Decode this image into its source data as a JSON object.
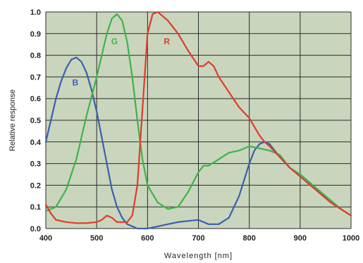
{
  "chart_data": {
    "type": "line",
    "title": "",
    "xlabel": "Wavelength [nm]",
    "ylabel": "Relative response",
    "xlim": [
      400,
      1000
    ],
    "ylim": [
      0,
      1
    ],
    "x_ticks": [
      400,
      500,
      600,
      700,
      800,
      900,
      1000
    ],
    "y_ticks": [
      0.0,
      0.1,
      0.2,
      0.3,
      0.4,
      0.5,
      0.6,
      0.7,
      0.8,
      0.9,
      1.0
    ],
    "grid": true,
    "plot_background": "#c9d6bd",
    "grid_color": "#2a2a2a",
    "series": [
      {
        "name": "B",
        "color": "#3a5fb0",
        "points": [
          [
            400,
            0.4
          ],
          [
            410,
            0.5
          ],
          [
            420,
            0.6
          ],
          [
            430,
            0.68
          ],
          [
            440,
            0.74
          ],
          [
            450,
            0.78
          ],
          [
            460,
            0.79
          ],
          [
            470,
            0.77
          ],
          [
            480,
            0.72
          ],
          [
            490,
            0.64
          ],
          [
            500,
            0.54
          ],
          [
            510,
            0.42
          ],
          [
            520,
            0.3
          ],
          [
            530,
            0.18
          ],
          [
            540,
            0.1
          ],
          [
            550,
            0.05
          ],
          [
            560,
            0.02
          ],
          [
            570,
            0.01
          ],
          [
            580,
            0.0
          ],
          [
            600,
            0.0
          ],
          [
            620,
            0.01
          ],
          [
            640,
            0.02
          ],
          [
            660,
            0.03
          ],
          [
            680,
            0.035
          ],
          [
            700,
            0.04
          ],
          [
            710,
            0.03
          ],
          [
            720,
            0.02
          ],
          [
            740,
            0.02
          ],
          [
            760,
            0.05
          ],
          [
            780,
            0.15
          ],
          [
            800,
            0.3
          ],
          [
            810,
            0.36
          ],
          [
            820,
            0.39
          ],
          [
            830,
            0.4
          ],
          [
            840,
            0.39
          ],
          [
            860,
            0.33
          ],
          [
            880,
            0.28
          ],
          [
            900,
            0.25
          ],
          [
            920,
            0.21
          ],
          [
            940,
            0.16
          ],
          [
            960,
            0.13
          ],
          [
            980,
            0.09
          ],
          [
            1000,
            0.06
          ]
        ]
      },
      {
        "name": "G",
        "color": "#3db34a",
        "points": [
          [
            400,
            0.08
          ],
          [
            420,
            0.1
          ],
          [
            440,
            0.18
          ],
          [
            460,
            0.32
          ],
          [
            480,
            0.52
          ],
          [
            500,
            0.7
          ],
          [
            510,
            0.8
          ],
          [
            520,
            0.9
          ],
          [
            530,
            0.97
          ],
          [
            540,
            0.99
          ],
          [
            550,
            0.96
          ],
          [
            560,
            0.86
          ],
          [
            570,
            0.7
          ],
          [
            580,
            0.5
          ],
          [
            590,
            0.32
          ],
          [
            600,
            0.2
          ],
          [
            620,
            0.12
          ],
          [
            640,
            0.09
          ],
          [
            660,
            0.1
          ],
          [
            680,
            0.17
          ],
          [
            700,
            0.26
          ],
          [
            710,
            0.29
          ],
          [
            720,
            0.29
          ],
          [
            740,
            0.32
          ],
          [
            760,
            0.35
          ],
          [
            780,
            0.36
          ],
          [
            800,
            0.38
          ],
          [
            820,
            0.37
          ],
          [
            840,
            0.36
          ],
          [
            860,
            0.34
          ],
          [
            880,
            0.28
          ],
          [
            900,
            0.25
          ],
          [
            920,
            0.21
          ],
          [
            940,
            0.17
          ],
          [
            960,
            0.13
          ],
          [
            980,
            0.09
          ],
          [
            1000,
            0.06
          ]
        ]
      },
      {
        "name": "R",
        "color": "#e23a2b",
        "points": [
          [
            400,
            0.11
          ],
          [
            410,
            0.07
          ],
          [
            420,
            0.04
          ],
          [
            440,
            0.03
          ],
          [
            460,
            0.025
          ],
          [
            480,
            0.025
          ],
          [
            500,
            0.03
          ],
          [
            510,
            0.04
          ],
          [
            520,
            0.06
          ],
          [
            530,
            0.05
          ],
          [
            540,
            0.03
          ],
          [
            560,
            0.03
          ],
          [
            570,
            0.06
          ],
          [
            580,
            0.2
          ],
          [
            590,
            0.55
          ],
          [
            600,
            0.9
          ],
          [
            610,
            0.99
          ],
          [
            620,
            1.0
          ],
          [
            640,
            0.96
          ],
          [
            660,
            0.9
          ],
          [
            680,
            0.82
          ],
          [
            700,
            0.75
          ],
          [
            710,
            0.75
          ],
          [
            720,
            0.77
          ],
          [
            730,
            0.75
          ],
          [
            740,
            0.7
          ],
          [
            760,
            0.63
          ],
          [
            780,
            0.56
          ],
          [
            800,
            0.51
          ],
          [
            820,
            0.43
          ],
          [
            830,
            0.4
          ],
          [
            840,
            0.38
          ],
          [
            860,
            0.33
          ],
          [
            880,
            0.28
          ],
          [
            900,
            0.24
          ],
          [
            920,
            0.2
          ],
          [
            940,
            0.16
          ],
          [
            960,
            0.12
          ],
          [
            980,
            0.09
          ],
          [
            1000,
            0.06
          ]
        ]
      }
    ],
    "series_labels": [
      {
        "text": "B",
        "x": 458,
        "y": 0.66,
        "color": "#3a5fb0"
      },
      {
        "text": "G",
        "x": 535,
        "y": 0.85,
        "color": "#3db34a"
      },
      {
        "text": "R",
        "x": 638,
        "y": 0.85,
        "color": "#e23a2b"
      }
    ]
  }
}
